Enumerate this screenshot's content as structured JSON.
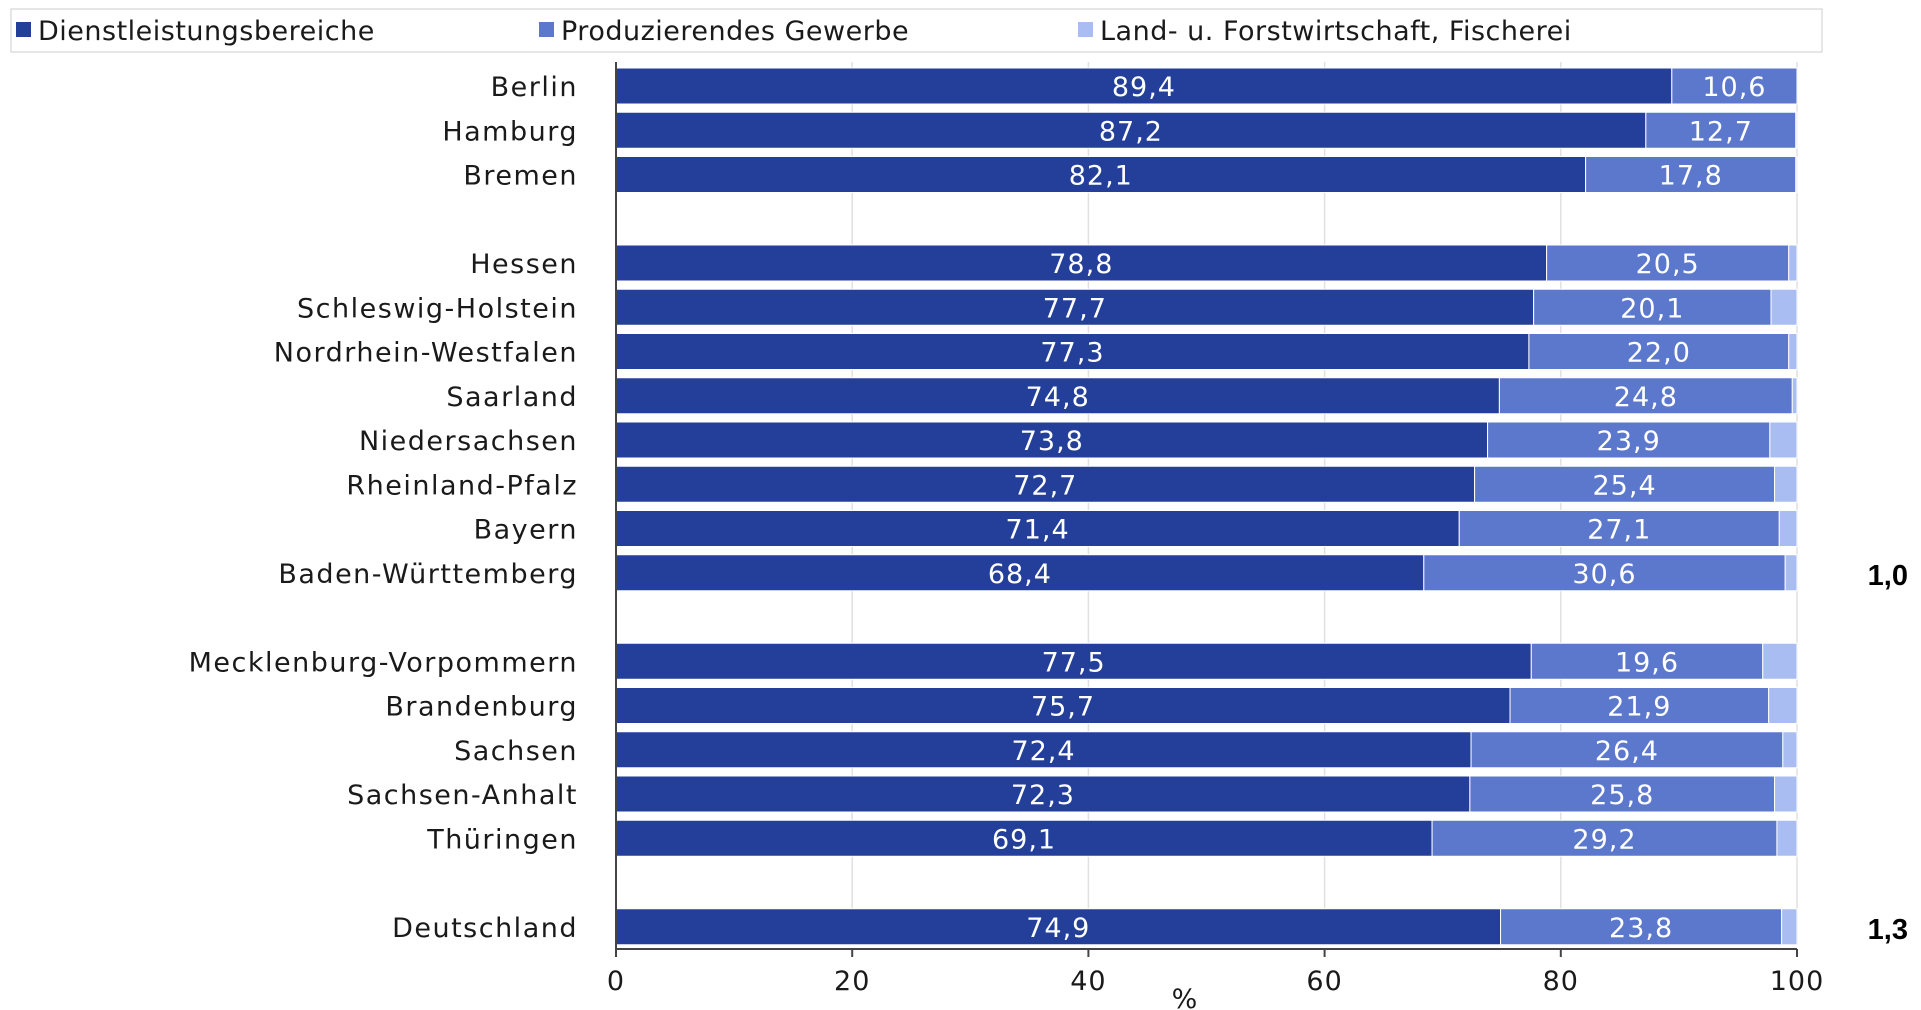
{
  "chart_data": {
    "type": "bar",
    "orientation": "horizontal",
    "stacked": true,
    "xlabel": "%",
    "xlim": [
      0,
      100
    ],
    "xticks": [
      0,
      20,
      40,
      60,
      80,
      100
    ],
    "grid": "vertical",
    "legend_position": "top",
    "categories": [
      "Berlin",
      "Hamburg",
      "Bremen",
      "",
      "Hessen",
      "Schleswig-Holstein",
      "Nordrhein-Westfalen",
      "Saarland",
      "Niedersachsen",
      "Rheinland-Pfalz",
      "Bayern",
      "Baden-Württemberg",
      "",
      "Mecklenburg-Vorpommern",
      "Brandenburg",
      "Sachsen",
      "Sachsen-Anhalt",
      "Thüringen",
      "",
      "Deutschland"
    ],
    "series": [
      {
        "name": "Dienstleistungsbereiche",
        "color": "#243f99",
        "values": [
          89.4,
          87.2,
          82.1,
          null,
          78.8,
          77.7,
          77.3,
          74.8,
          73.8,
          72.7,
          71.4,
          68.4,
          null,
          77.5,
          75.7,
          72.4,
          72.3,
          69.1,
          null,
          74.9
        ],
        "labels": [
          "89,4",
          "87,2",
          "82,1",
          "",
          "78,8",
          "77,7",
          "77,3",
          "74,8",
          "73,8",
          "72,7",
          "71,4",
          "68,4",
          "",
          "77,5",
          "75,7",
          "72,4",
          "72,3",
          "69,1",
          "",
          "74,9"
        ]
      },
      {
        "name": "Produzierendes Gewerbe",
        "color": "#5c78cc",
        "values": [
          10.6,
          12.7,
          17.8,
          null,
          20.5,
          20.1,
          22.0,
          24.8,
          23.9,
          25.4,
          27.1,
          30.6,
          null,
          19.6,
          21.9,
          26.4,
          25.8,
          29.2,
          null,
          23.8
        ],
        "labels": [
          "10,6",
          "12,7",
          "17,8",
          "",
          "20,5",
          "20,1",
          "22,0",
          "24,8",
          "23,9",
          "25,4",
          "27,1",
          "30,6",
          "",
          "19,6",
          "21,9",
          "26,4",
          "25,8",
          "29,2",
          "",
          "23,8"
        ]
      },
      {
        "name": "Land- u. Forstwirtschaft, Fischerei",
        "color": "#a9bdf2",
        "values": [
          0.0,
          0.1,
          0.1,
          null,
          0.7,
          2.2,
          0.7,
          0.4,
          2.3,
          1.9,
          1.5,
          1.0,
          null,
          2.9,
          2.4,
          1.2,
          1.9,
          1.7,
          null,
          1.3
        ],
        "labels": [
          "",
          "",
          "",
          "",
          "",
          "",
          "",
          "",
          "",
          "",
          "",
          "",
          "",
          "",
          "",
          "",
          "",
          "",
          "",
          ""
        ]
      }
    ],
    "annotations": [
      {
        "category": "Baden-Württemberg",
        "text": "1,0"
      },
      {
        "category": "Deutschland",
        "text": "1,3"
      }
    ]
  }
}
